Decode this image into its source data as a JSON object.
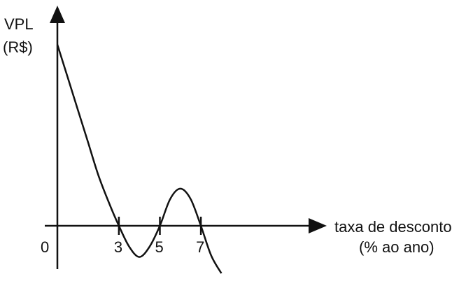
{
  "chart_data": {
    "type": "line",
    "title": "",
    "ylabel": [
      "VPL",
      "(R$)"
    ],
    "xlabel": [
      "taxa de desconto",
      "(% ao ano)"
    ],
    "origin_label": "0",
    "x_ticks": [
      "3",
      "5",
      "7"
    ],
    "xlim": [
      0,
      9
    ],
    "ylim": [
      -1.4,
      6.5
    ],
    "grid": false,
    "legend": "none",
    "series": [
      {
        "x": [
          0,
          0.5,
          1,
          1.5,
          2,
          2.5,
          3,
          3.5,
          4,
          4.5,
          5,
          5.5,
          6,
          6.5,
          7,
          7.5,
          8
        ],
        "y": [
          6.1,
          5.0,
          3.9,
          2.8,
          1.7,
          0.8,
          0,
          -0.7,
          -1.05,
          -0.7,
          0,
          0.9,
          1.25,
          0.9,
          0,
          -1.0,
          -1.6
        ]
      }
    ],
    "colors": {
      "line": "#111111"
    }
  }
}
